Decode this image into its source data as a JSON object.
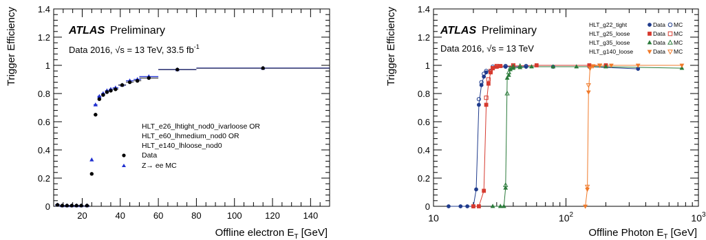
{
  "chart_data": [
    {
      "type": "scatter",
      "ylabel": "Trigger Efficiency",
      "xlabel": "Offline electron E",
      "xlabel_sub": "T",
      "xlabel_unit": " [GeV]",
      "xlim": [
        5,
        150
      ],
      "ylim": [
        0,
        1.4
      ],
      "x_scale": "linear",
      "xticks": [
        20,
        40,
        60,
        80,
        100,
        120,
        140
      ],
      "xticklabels": [
        "20",
        "40",
        "60",
        "80",
        "100",
        "120",
        "140"
      ],
      "yticks": [
        0,
        0.2,
        0.4,
        0.6,
        0.8,
        1,
        1.2,
        1.4
      ],
      "yticklabels": [
        "0",
        "0.2",
        "0.4",
        "0.6",
        "0.8",
        "1",
        "1.2",
        "1.4"
      ],
      "atlas_label": "ATLAS",
      "prelim_label": "Preliminary",
      "info_text": "Data 2016, √s = 13 TeV, 33.5 fb",
      "info_sup": "-1",
      "trigger_lines": [
        "HLT_e26_lhtight_nod0_ivarloose OR",
        "HLT_e60_lhmedium_nod0 OR",
        "HLT_e140_lhloose_nod0"
      ],
      "series": [
        {
          "name": "Data",
          "marker": "circle",
          "color": "#000000",
          "x": [
            7,
            9.5,
            12,
            14.5,
            17,
            19.5,
            22.5,
            25,
            27,
            29,
            31,
            33,
            35,
            37.5,
            41,
            45,
            49,
            55,
            70,
            115
          ],
          "xerr": [
            1.25,
            1.25,
            1.25,
            1.25,
            1.25,
            1.25,
            1.25,
            0.5,
            1,
            1,
            1,
            1,
            1,
            1.5,
            2,
            2,
            2,
            5,
            10,
            35
          ],
          "y": [
            0.01,
            0.005,
            0.005,
            0.005,
            0.005,
            0.005,
            0.005,
            0.23,
            0.65,
            0.76,
            0.79,
            0.81,
            0.82,
            0.83,
            0.86,
            0.88,
            0.89,
            0.91,
            0.97,
            0.98
          ]
        },
        {
          "name": "Z→ ee MC",
          "marker": "triangle",
          "color": "#1f2fd0",
          "x": [
            7,
            9.5,
            12,
            14.5,
            17,
            19.5,
            22.5,
            25,
            27,
            29,
            31,
            33,
            35,
            37.5,
            41,
            45,
            49,
            55,
            70,
            115
          ],
          "xerr": [
            1.25,
            1.25,
            1.25,
            1.25,
            1.25,
            1.25,
            1.25,
            0.5,
            1,
            1,
            1,
            1,
            1,
            1.5,
            2,
            2,
            2,
            5,
            10,
            35
          ],
          "y": [
            0.01,
            0.005,
            0.005,
            0.005,
            0.005,
            0.005,
            0.005,
            0.33,
            0.72,
            0.78,
            0.8,
            0.82,
            0.83,
            0.84,
            0.86,
            0.89,
            0.9,
            0.92,
            0.97,
            0.98
          ]
        }
      ],
      "legend": [
        {
          "label": "Data",
          "marker": "circle",
          "color": "#000000"
        },
        {
          "label": "Z→ ee MC",
          "marker": "triangle",
          "color": "#1f2fd0"
        }
      ],
      "legend_position": "center-right"
    },
    {
      "type": "scatter",
      "ylabel": "Trigger Efficiency",
      "xlabel": "Offline Photon E",
      "xlabel_sub": "T",
      "xlabel_unit": " [GeV]",
      "xlim": [
        10,
        1000
      ],
      "ylim": [
        0,
        1.4
      ],
      "x_scale": "log",
      "xtick_labels": [
        {
          "value": 10,
          "base": "10",
          "exp": ""
        },
        {
          "value": 100,
          "base": "10",
          "exp": "2"
        },
        {
          "value": 1000,
          "base": "10",
          "exp": "3"
        }
      ],
      "yticks": [
        0,
        0.2,
        0.4,
        0.6,
        0.8,
        1,
        1.2,
        1.4
      ],
      "yticklabels": [
        "0",
        "0.2",
        "0.4",
        "0.6",
        "0.8",
        "1",
        "1.2",
        "1.4"
      ],
      "atlas_label": "ATLAS",
      "prelim_label": "Preliminary",
      "info_text": "Data 2016, √s = 13 TeV",
      "series": [
        {
          "name": "HLT_g22_tight Data",
          "marker": "circle",
          "filled": true,
          "color": "#1f3b8c",
          "x": [
            13,
            16,
            18,
            20,
            21,
            22,
            23,
            24,
            25,
            28,
            35,
            50,
            80,
            150,
            350
          ],
          "y": [
            0.0,
            0.0,
            0.0,
            0.0,
            0.12,
            0.72,
            0.86,
            0.92,
            0.95,
            0.98,
            0.99,
            0.99,
            0.99,
            0.99,
            0.975
          ]
        },
        {
          "name": "HLT_g22_tight MC",
          "marker": "circle",
          "filled": false,
          "color": "#1f3b8c",
          "x": [
            22,
            23,
            24,
            25,
            28,
            35,
            50
          ],
          "y": [
            0.76,
            0.88,
            0.94,
            0.96,
            0.99,
            0.995,
            0.995
          ]
        },
        {
          "name": "HLT_g25_loose Data",
          "marker": "square",
          "filled": true,
          "color": "#d63a2f",
          "x": [
            20,
            22,
            24,
            25,
            26,
            27,
            28,
            30,
            32,
            40,
            60,
            150,
            200
          ],
          "y": [
            0.0,
            0.0,
            0.11,
            0.72,
            0.87,
            0.95,
            0.98,
            0.99,
            0.995,
            0.995,
            1.0,
            1.0,
            1.0
          ]
        },
        {
          "name": "HLT_g25_loose MC",
          "marker": "square",
          "filled": false,
          "color": "#d63a2f",
          "x": [
            25,
            26,
            27,
            28,
            30,
            40
          ],
          "y": [
            0.77,
            0.9,
            0.96,
            0.98,
            0.995,
            1.0
          ]
        },
        {
          "name": "HLT_g35_loose Data",
          "marker": "triangle",
          "filled": true,
          "color": "#2a7a3a",
          "x": [
            28,
            32,
            34,
            35,
            36,
            37,
            38,
            40,
            45,
            55,
            80,
            120,
            200,
            750
          ],
          "y": [
            0.0,
            0.0,
            0.0,
            0.13,
            0.91,
            0.93,
            0.97,
            0.98,
            0.985,
            0.99,
            0.99,
            0.99,
            0.99,
            0.98
          ]
        },
        {
          "name": "HLT_g35_loose MC",
          "marker": "triangle",
          "filled": false,
          "color": "#2a7a3a",
          "x": [
            35,
            36,
            37,
            38,
            40,
            45
          ],
          "y": [
            0.15,
            0.8,
            0.95,
            0.98,
            0.99,
            0.995
          ]
        },
        {
          "name": "HLT_g140_loose Data",
          "marker": "triangle-down",
          "filled": true,
          "color": "#f07a2a",
          "x": [
            140,
            145,
            148,
            152,
            160,
            180,
            220,
            350,
            750
          ],
          "y": [
            0.0,
            0.12,
            0.81,
            0.98,
            0.995,
            1.0,
            1.0,
            1.0,
            1.0
          ]
        },
        {
          "name": "HLT_g140_loose MC",
          "marker": "triangle-down",
          "filled": false,
          "color": "#f07a2a",
          "x": [
            145,
            148,
            152,
            160,
            180
          ],
          "y": [
            0.14,
            0.86,
            0.98,
            0.995,
            1.0
          ]
        }
      ],
      "legend_rows": [
        {
          "trigger": "HLT_g22_tight",
          "marker": "circle",
          "color": "#1f3b8c"
        },
        {
          "trigger": "HLT_g25_loose",
          "marker": "square",
          "color": "#d63a2f"
        },
        {
          "trigger": "HLT_g35_loose",
          "marker": "triangle",
          "color": "#2a7a3a"
        },
        {
          "trigger": "HLT_g140_loose",
          "marker": "triangle-down",
          "color": "#f07a2a"
        }
      ],
      "legend_data_label": "Data",
      "legend_mc_label": "MC",
      "legend_position": "top-right"
    }
  ]
}
